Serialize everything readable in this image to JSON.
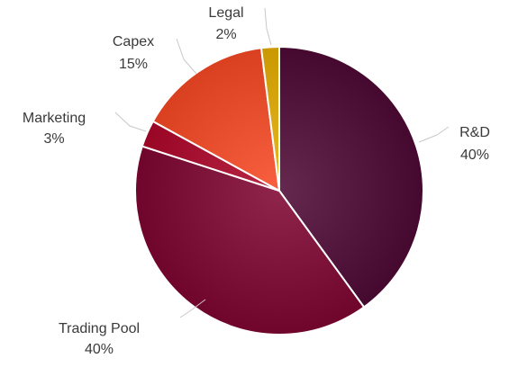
{
  "chart_data": {
    "type": "pie",
    "slices": [
      {
        "label": "R&D",
        "percent_label": "40%",
        "value": 40,
        "color": "#4f1238"
      },
      {
        "label": "Trading Pool",
        "percent_label": "40%",
        "value": 40,
        "color": "#7a0f35"
      },
      {
        "label": "Marketing",
        "percent_label": "3%",
        "value": 3,
        "color": "#a3102f"
      },
      {
        "label": "Capex",
        "percent_label": "15%",
        "value": 15,
        "color": "#e24a2a"
      },
      {
        "label": "Legal",
        "percent_label": "2%",
        "value": 2,
        "color": "#d4a20d"
      }
    ]
  }
}
